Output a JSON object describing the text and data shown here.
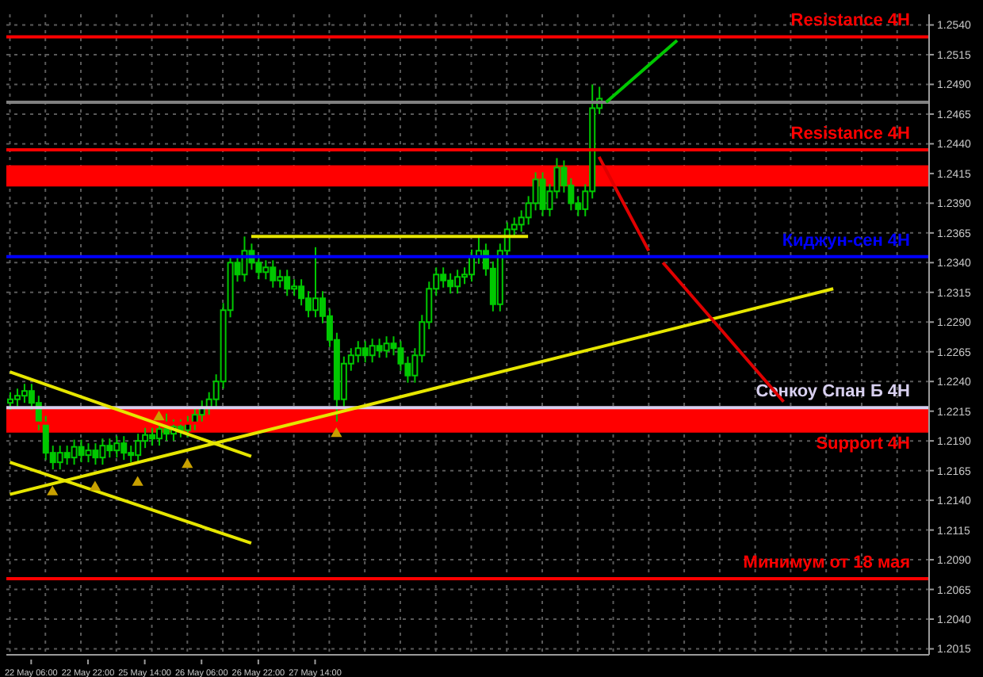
{
  "chart_data": {
    "type": "candlestick",
    "categories": [
      null,
      null,
      null,
      "22 May 06:00",
      null,
      null,
      null,
      null,
      null,
      null,
      null,
      "22 May 22:00",
      null,
      null,
      null,
      null,
      null,
      null,
      null,
      "25 May 14:00",
      null,
      null,
      null,
      null,
      null,
      null,
      null,
      "26 May 06:00",
      null,
      null,
      null,
      null,
      null,
      null,
      null,
      "26 May 22:00",
      null,
      null,
      null,
      null,
      null,
      null,
      null,
      "27 May 14:00",
      null,
      null,
      null,
      null,
      null,
      null,
      null,
      null,
      null,
      null,
      null,
      null,
      null,
      null,
      null,
      null,
      null,
      null,
      null,
      null,
      null,
      null,
      null,
      null,
      null,
      null,
      null,
      null,
      null,
      null,
      null,
      null,
      null,
      null,
      null,
      null,
      null,
      null,
      null,
      null,
      null,
      null,
      null,
      null,
      null,
      null,
      null,
      null,
      null,
      null,
      null,
      null,
      null,
      null,
      null,
      null,
      null,
      null,
      null,
      null,
      null,
      null,
      null,
      null,
      null,
      null,
      null,
      null,
      null,
      null,
      null,
      null,
      null,
      null,
      null,
      null,
      null,
      null,
      null,
      null,
      null,
      null,
      null,
      null,
      null,
      null
    ],
    "ohlc": [
      [
        1.2222,
        1.2231,
        1.2216,
        1.2225
      ],
      [
        1.2225,
        1.2234,
        1.2219,
        1.2228
      ],
      [
        1.2228,
        1.2238,
        1.2222,
        1.2232
      ],
      [
        1.2232,
        1.2238,
        1.2216,
        1.2222
      ],
      [
        1.2222,
        1.2228,
        1.2199,
        1.2205
      ],
      [
        1.2205,
        1.2211,
        1.2174,
        1.218
      ],
      [
        1.218,
        1.2186,
        1.2166,
        1.2172
      ],
      [
        1.2172,
        1.2186,
        1.2166,
        1.218
      ],
      [
        1.218,
        1.2186,
        1.217,
        1.2176
      ],
      [
        1.2176,
        1.2191,
        1.217,
        1.2185
      ],
      [
        1.2185,
        1.2191,
        1.2172,
        1.2178
      ],
      [
        1.2178,
        1.2188,
        1.2172,
        1.2182
      ],
      [
        1.2182,
        1.2188,
        1.217,
        1.2176
      ],
      [
        1.2176,
        1.2192,
        1.217,
        1.2186
      ],
      [
        1.2186,
        1.2192,
        1.2176,
        1.2182
      ],
      [
        1.2182,
        1.2194,
        1.2176,
        1.2188
      ],
      [
        1.2188,
        1.2194,
        1.2174,
        1.218
      ],
      [
        1.218,
        1.2186,
        1.2172,
        1.2178
      ],
      [
        1.2178,
        1.2196,
        1.2172,
        1.219
      ],
      [
        1.219,
        1.2201,
        1.2184,
        1.2195
      ],
      [
        1.2195,
        1.2201,
        1.2186,
        1.2192
      ],
      [
        1.2192,
        1.2206,
        1.2186,
        1.22
      ],
      [
        1.22,
        1.2213,
        1.219,
        1.2196
      ],
      [
        1.2196,
        1.2208,
        1.219,
        1.2202
      ],
      [
        1.2202,
        1.2208,
        1.2193,
        1.2199
      ],
      [
        1.2199,
        1.2211,
        1.2193,
        1.2205
      ],
      [
        1.2205,
        1.2218,
        1.2199,
        1.2212
      ],
      [
        1.2212,
        1.2224,
        1.2206,
        1.2218
      ],
      [
        1.2218,
        1.2231,
        1.2212,
        1.2225
      ],
      [
        1.2225,
        1.2246,
        1.2219,
        1.224
      ],
      [
        1.224,
        1.2306,
        1.2234,
        1.23
      ],
      [
        1.23,
        1.2346,
        1.2294,
        1.234
      ],
      [
        1.234,
        1.2346,
        1.2324,
        1.233
      ],
      [
        1.233,
        1.2362,
        1.2324,
        1.235
      ],
      [
        1.235,
        1.2356,
        1.2334,
        1.234
      ],
      [
        1.234,
        1.2346,
        1.2326,
        1.2332
      ],
      [
        1.2332,
        1.2342,
        1.2326,
        1.2336
      ],
      [
        1.2336,
        1.2342,
        1.2319,
        1.2325
      ],
      [
        1.2325,
        1.2334,
        1.2319,
        1.2328
      ],
      [
        1.2328,
        1.2334,
        1.2312,
        1.2318
      ],
      [
        1.2318,
        1.2326,
        1.2312,
        1.232
      ],
      [
        1.232,
        1.2326,
        1.2304,
        1.231
      ],
      [
        1.231,
        1.2316,
        1.2294,
        1.23
      ],
      [
        1.23,
        1.2353,
        1.2294,
        1.231
      ],
      [
        1.231,
        1.2316,
        1.2289,
        1.2295
      ],
      [
        1.2295,
        1.2301,
        1.2269,
        1.2275
      ],
      [
        1.2275,
        1.2281,
        1.2206,
        1.2225
      ],
      [
        1.2225,
        1.2261,
        1.2219,
        1.2255
      ],
      [
        1.2255,
        1.2268,
        1.2249,
        1.2262
      ],
      [
        1.2262,
        1.2274,
        1.2256,
        1.2268
      ],
      [
        1.2268,
        1.2274,
        1.2256,
        1.2262
      ],
      [
        1.2262,
        1.2276,
        1.2256,
        1.227
      ],
      [
        1.227,
        1.2276,
        1.226,
        1.2266
      ],
      [
        1.2266,
        1.2278,
        1.226,
        1.2272
      ],
      [
        1.2272,
        1.2278,
        1.2262,
        1.2268
      ],
      [
        1.2268,
        1.2274,
        1.2249,
        1.2255
      ],
      [
        1.2255,
        1.2261,
        1.2239,
        1.2245
      ],
      [
        1.2245,
        1.2268,
        1.2239,
        1.2262
      ],
      [
        1.2262,
        1.2296,
        1.2256,
        1.229
      ],
      [
        1.229,
        1.2324,
        1.2284,
        1.2318
      ],
      [
        1.2318,
        1.2336,
        1.2312,
        1.233
      ],
      [
        1.233,
        1.2336,
        1.2319,
        1.2325
      ],
      [
        1.2325,
        1.2331,
        1.2314,
        1.232
      ],
      [
        1.232,
        1.2334,
        1.2314,
        1.2328
      ],
      [
        1.2328,
        1.2336,
        1.2322,
        1.233
      ],
      [
        1.233,
        1.2351,
        1.2324,
        1.2345
      ],
      [
        1.2345,
        1.2362,
        1.2339,
        1.235
      ],
      [
        1.235,
        1.2356,
        1.2329,
        1.2335
      ],
      [
        1.2335,
        1.2341,
        1.2299,
        1.2305
      ],
      [
        1.2305,
        1.2356,
        1.2299,
        1.235
      ],
      [
        1.235,
        1.2374,
        1.2344,
        1.2368
      ],
      [
        1.2368,
        1.2378,
        1.2362,
        1.2372
      ],
      [
        1.2372,
        1.2384,
        1.2366,
        1.2378
      ],
      [
        1.2378,
        1.2396,
        1.2372,
        1.239
      ],
      [
        1.239,
        1.2416,
        1.2384,
        1.241
      ],
      [
        1.241,
        1.2416,
        1.2379,
        1.2385
      ],
      [
        1.2385,
        1.2406,
        1.2379,
        1.24
      ],
      [
        1.24,
        1.2428,
        1.2394,
        1.242
      ],
      [
        1.242,
        1.2426,
        1.2399,
        1.2405
      ],
      [
        1.2405,
        1.2411,
        1.2384,
        1.239
      ],
      [
        1.239,
        1.2396,
        1.2379,
        1.2385
      ],
      [
        1.2385,
        1.2406,
        1.2379,
        1.24
      ],
      [
        1.24,
        1.249,
        1.2394,
        1.247
      ],
      [
        1.247,
        1.2488,
        1.2465,
        1.2478
      ],
      null,
      null,
      null,
      null,
      null,
      null,
      null,
      null,
      null,
      null,
      null,
      null,
      null,
      null,
      null,
      null,
      null,
      null,
      null,
      null,
      null,
      null,
      null,
      null,
      null,
      null,
      null,
      null,
      null,
      null,
      null,
      null,
      null,
      null,
      null,
      null,
      null,
      null,
      null,
      null,
      null,
      null,
      null,
      null,
      null,
      null
    ],
    "color": "#00c800",
    "series": [
      {
        "type": "line",
        "color": "#e6e600",
        "values": [
          1.2248,
          null,
          null,
          null,
          null,
          null,
          null,
          null,
          null,
          null,
          null,
          null,
          null,
          null,
          null,
          null,
          null,
          null,
          null,
          null,
          null,
          null,
          null,
          null,
          null,
          null,
          null,
          null,
          null,
          null,
          null,
          null,
          null,
          null,
          1.2177,
          null,
          null,
          null,
          null,
          null,
          null,
          null,
          null,
          null,
          null,
          null,
          null,
          null,
          null,
          null,
          null,
          null,
          null,
          null,
          null,
          null,
          null,
          null,
          null,
          null,
          null,
          null,
          null,
          null,
          null,
          null,
          null,
          null,
          null,
          null,
          null,
          null,
          null,
          null,
          null,
          null,
          null,
          null,
          null,
          null,
          null,
          null,
          null,
          null,
          null,
          null,
          null,
          null,
          null,
          null,
          null,
          null,
          null,
          null,
          null,
          null,
          null,
          null,
          null,
          null,
          null,
          null,
          null,
          null,
          null,
          null,
          null,
          null,
          null,
          null,
          null,
          null,
          null,
          null,
          null,
          null,
          null,
          null,
          null,
          null,
          null,
          null,
          null,
          null,
          null,
          null,
          null,
          null,
          null,
          null
        ]
      },
      {
        "type": "line",
        "color": "#e6e600",
        "values": [
          1.2172,
          null,
          null,
          null,
          null,
          null,
          null,
          null,
          null,
          null,
          null,
          null,
          null,
          null,
          null,
          null,
          null,
          null,
          null,
          null,
          null,
          null,
          null,
          null,
          null,
          null,
          null,
          null,
          null,
          null,
          null,
          null,
          null,
          null,
          1.2104,
          null,
          null,
          null,
          null,
          null,
          null,
          null,
          null,
          null,
          null,
          null,
          null,
          null,
          null,
          null,
          null,
          null,
          null,
          null,
          null,
          null,
          null,
          null,
          null,
          null,
          null,
          null,
          null,
          null,
          null,
          null,
          null,
          null,
          null,
          null,
          null,
          null,
          null,
          null,
          null,
          null,
          null,
          null,
          null,
          null,
          null,
          null,
          null,
          null,
          null,
          null,
          null,
          null,
          null,
          null,
          null,
          null,
          null,
          null,
          null,
          null,
          null,
          null,
          null,
          null,
          null,
          null,
          null,
          null,
          null,
          null,
          null,
          null,
          null,
          null,
          null,
          null,
          null,
          null,
          null,
          null,
          null,
          null,
          null,
          null,
          null,
          null,
          null,
          null,
          null,
          null,
          null,
          null,
          null,
          null
        ]
      },
      {
        "type": "line",
        "color": "#e6e600",
        "values": [
          1.2145,
          null,
          null,
          null,
          null,
          null,
          null,
          null,
          null,
          null,
          null,
          null,
          null,
          null,
          null,
          null,
          null,
          null,
          null,
          null,
          null,
          null,
          null,
          null,
          null,
          null,
          null,
          null,
          null,
          null,
          null,
          null,
          null,
          null,
          null,
          null,
          null,
          null,
          null,
          null,
          null,
          null,
          null,
          null,
          null,
          null,
          null,
          null,
          null,
          null,
          null,
          null,
          null,
          null,
          null,
          null,
          null,
          null,
          null,
          null,
          null,
          null,
          null,
          null,
          null,
          null,
          null,
          null,
          null,
          null,
          null,
          null,
          null,
          null,
          null,
          null,
          null,
          null,
          null,
          null,
          null,
          null,
          null,
          null,
          null,
          null,
          null,
          null,
          null,
          null,
          null,
          null,
          null,
          null,
          null,
          null,
          null,
          null,
          null,
          null,
          null,
          null,
          null,
          null,
          null,
          null,
          null,
          null,
          null,
          null,
          null,
          null,
          null,
          null,
          null,
          null,
          1.2318,
          null,
          null,
          null,
          null,
          null,
          null,
          null,
          null,
          null,
          null,
          null,
          null,
          null
        ]
      },
      {
        "type": "line",
        "color": "#e6e600",
        "values": [
          null,
          null,
          null,
          null,
          null,
          null,
          null,
          null,
          null,
          null,
          null,
          null,
          null,
          null,
          null,
          null,
          null,
          null,
          null,
          null,
          null,
          null,
          null,
          null,
          null,
          null,
          null,
          null,
          null,
          null,
          null,
          null,
          null,
          null,
          1.2362,
          null,
          null,
          null,
          null,
          null,
          null,
          null,
          null,
          null,
          null,
          null,
          null,
          null,
          null,
          null,
          null,
          null,
          null,
          null,
          null,
          null,
          null,
          null,
          null,
          null,
          null,
          null,
          null,
          null,
          null,
          null,
          null,
          null,
          null,
          null,
          null,
          null,
          null,
          1.2362,
          null,
          null,
          null,
          null,
          null,
          null,
          null,
          null,
          null,
          null,
          null,
          null,
          null,
          null,
          null,
          null,
          null,
          null,
          null,
          null,
          null,
          null,
          null,
          null,
          null,
          null,
          null,
          null,
          null,
          null,
          null,
          null,
          null,
          null,
          null,
          null,
          null,
          null,
          null,
          null,
          null,
          null,
          null,
          null,
          null,
          null,
          null,
          null,
          null,
          null,
          null,
          null,
          null,
          null,
          null,
          null
        ]
      },
      {
        "type": "line",
        "color": "#00c800",
        "values": [
          null,
          null,
          null,
          null,
          null,
          null,
          null,
          null,
          null,
          null,
          null,
          null,
          null,
          null,
          null,
          null,
          null,
          null,
          null,
          null,
          null,
          null,
          null,
          null,
          null,
          null,
          null,
          null,
          null,
          null,
          null,
          null,
          null,
          null,
          null,
          null,
          null,
          null,
          null,
          null,
          null,
          null,
          null,
          null,
          null,
          null,
          null,
          null,
          null,
          null,
          null,
          null,
          null,
          null,
          null,
          null,
          null,
          null,
          null,
          null,
          null,
          null,
          null,
          null,
          null,
          null,
          null,
          null,
          null,
          null,
          null,
          null,
          null,
          null,
          null,
          null,
          null,
          null,
          null,
          null,
          null,
          null,
          null,
          null,
          1.2475,
          null,
          null,
          null,
          null,
          null,
          null,
          null,
          null,
          null,
          1.2527,
          null,
          null,
          null,
          null,
          null,
          null,
          null,
          null,
          null,
          null,
          null,
          null,
          null,
          null,
          null,
          null,
          null,
          null,
          null,
          null,
          null,
          null,
          null,
          null,
          null,
          null,
          null,
          null,
          null,
          null,
          null,
          null,
          null,
          null,
          null
        ]
      },
      {
        "type": "line",
        "color": "#e00000",
        "values": [
          null,
          null,
          null,
          null,
          null,
          null,
          null,
          null,
          null,
          null,
          null,
          null,
          null,
          null,
          null,
          null,
          null,
          null,
          null,
          null,
          null,
          null,
          null,
          null,
          null,
          null,
          null,
          null,
          null,
          null,
          null,
          null,
          null,
          null,
          null,
          null,
          null,
          null,
          null,
          null,
          null,
          null,
          null,
          null,
          null,
          null,
          null,
          null,
          null,
          null,
          null,
          null,
          null,
          null,
          null,
          null,
          null,
          null,
          null,
          null,
          null,
          null,
          null,
          null,
          null,
          null,
          null,
          null,
          null,
          null,
          null,
          null,
          null,
          null,
          null,
          null,
          null,
          null,
          null,
          null,
          null,
          null,
          null,
          1.2429,
          null,
          null,
          null,
          null,
          null,
          null,
          1.235,
          null,
          null,
          null,
          null,
          null,
          null,
          null,
          null,
          null,
          null,
          null,
          null,
          null,
          null,
          null,
          null,
          null,
          null,
          null,
          null,
          null,
          null,
          null,
          null,
          null,
          null,
          null,
          null,
          null,
          null,
          null,
          null,
          null,
          null,
          null,
          null,
          null,
          null,
          null
        ]
      },
      {
        "type": "line",
        "color": "#e00000",
        "values": [
          null,
          null,
          null,
          null,
          null,
          null,
          null,
          null,
          null,
          null,
          null,
          null,
          null,
          null,
          null,
          null,
          null,
          null,
          null,
          null,
          null,
          null,
          null,
          null,
          null,
          null,
          null,
          null,
          null,
          null,
          null,
          null,
          null,
          null,
          null,
          null,
          null,
          null,
          null,
          null,
          null,
          null,
          null,
          null,
          null,
          null,
          null,
          null,
          null,
          null,
          null,
          null,
          null,
          null,
          null,
          null,
          null,
          null,
          null,
          null,
          null,
          null,
          null,
          null,
          null,
          null,
          null,
          null,
          null,
          null,
          null,
          null,
          null,
          null,
          null,
          null,
          null,
          null,
          null,
          null,
          null,
          null,
          null,
          null,
          null,
          null,
          null,
          null,
          null,
          null,
          null,
          null,
          1.234,
          null,
          null,
          null,
          null,
          null,
          null,
          null,
          null,
          null,
          null,
          null,
          null,
          null,
          null,
          null,
          null,
          1.2223,
          null,
          null,
          null,
          null,
          null,
          null,
          null,
          null,
          null,
          null,
          null,
          null,
          null,
          null,
          null,
          null,
          null,
          null,
          null,
          null
        ]
      },
      {
        "type": "scatter",
        "color": "#c8a000",
        "marker": "triangle",
        "values": [
          null,
          null,
          null,
          null,
          null,
          null,
          1.2147,
          null,
          null,
          null,
          null,
          null,
          1.2151,
          null,
          null,
          null,
          null,
          null,
          1.2155,
          null,
          null,
          1.221,
          null,
          null,
          null,
          1.217,
          null,
          null,
          null,
          null,
          null,
          null,
          null,
          null,
          null,
          null,
          null,
          null,
          null,
          null,
          null,
          null,
          null,
          null,
          null,
          null,
          1.2196,
          null,
          null,
          null,
          null,
          null,
          null,
          null,
          null,
          null,
          null,
          null,
          null,
          null,
          null,
          null,
          null,
          null,
          null,
          null,
          null,
          null,
          null,
          null,
          null,
          null,
          null,
          null,
          null,
          null,
          null,
          null,
          null,
          null,
          null,
          null,
          null,
          null,
          null,
          null,
          null,
          null,
          null,
          null,
          null,
          null,
          null,
          null,
          null,
          null,
          null,
          null,
          null,
          null,
          null,
          null,
          null,
          null,
          null,
          null,
          null,
          null,
          null,
          null,
          null,
          null,
          null,
          null,
          null,
          null,
          null,
          null,
          null,
          null,
          null,
          null,
          null,
          null,
          null,
          null,
          null,
          null,
          null,
          null
        ]
      }
    ],
    "marker": "none",
    "ylim": [
      1.201,
      1.2549
    ],
    "yticks": [
      {
        "value": 1.2015,
        "label": "1.2015"
      },
      {
        "value": 1.204,
        "label": "1.2040"
      },
      {
        "value": 1.2065,
        "label": "1.2065"
      },
      {
        "value": 1.209,
        "label": "1.2090"
      },
      {
        "value": 1.2115,
        "label": "1.2115"
      },
      {
        "value": 1.214,
        "label": "1.2140"
      },
      {
        "value": 1.2165,
        "label": "1.2165"
      },
      {
        "value": 1.219,
        "label": "1.2190"
      },
      {
        "value": 1.2215,
        "label": "1.2215"
      },
      {
        "value": 1.224,
        "label": "1.2240"
      },
      {
        "value": 1.2265,
        "label": "1.2265"
      },
      {
        "value": 1.229,
        "label": "1.2290"
      },
      {
        "value": 1.2315,
        "label": "1.2315"
      },
      {
        "value": 1.234,
        "label": "1.2340"
      },
      {
        "value": 1.2365,
        "label": "1.2365"
      },
      {
        "value": 1.239,
        "label": "1.2390"
      },
      {
        "value": 1.2415,
        "label": "1.2415"
      },
      {
        "value": 1.244,
        "label": "1.2440"
      },
      {
        "value": 1.2465,
        "label": "1.2465"
      },
      {
        "value": 1.249,
        "label": "1.2490"
      },
      {
        "value": 1.2515,
        "label": "1.2515"
      },
      {
        "value": 1.254,
        "label": "1.2540"
      }
    ],
    "grid": true,
    "legend": false,
    "ref_lines": [
      {
        "axis": "y",
        "value": 1.253,
        "label": "Resistance 4H",
        "color": "#ff0000"
      },
      {
        "axis": "y",
        "value": 1.2475,
        "label": null,
        "color": "#808080"
      },
      {
        "axis": "y",
        "value": 1.2435,
        "label": "Resistance 4H",
        "color": "#ff0000"
      },
      {
        "axis": "y",
        "value": 1.2345,
        "label": "Киджун-сен 4H",
        "color": "#0000ff"
      },
      {
        "axis": "y",
        "value": 1.2218,
        "label": "Сенкоу Спан Б 4H",
        "color": "#d8d0f0"
      },
      {
        "axis": "y",
        "value": 1.2205,
        "label": "Support 4H",
        "color": "#ff0000"
      },
      {
        "axis": "y",
        "value": 1.2074,
        "label": "Минимум от 18 мая",
        "color": "#ff0000"
      }
    ],
    "bands": [
      {
        "axis": "y",
        "from": 1.2404,
        "to": 1.2422,
        "label": null,
        "color": "#ff0000"
      },
      {
        "axis": "y",
        "from": 1.2197,
        "to": 1.2217,
        "label": null,
        "color": "#ff0000"
      }
    ]
  }
}
